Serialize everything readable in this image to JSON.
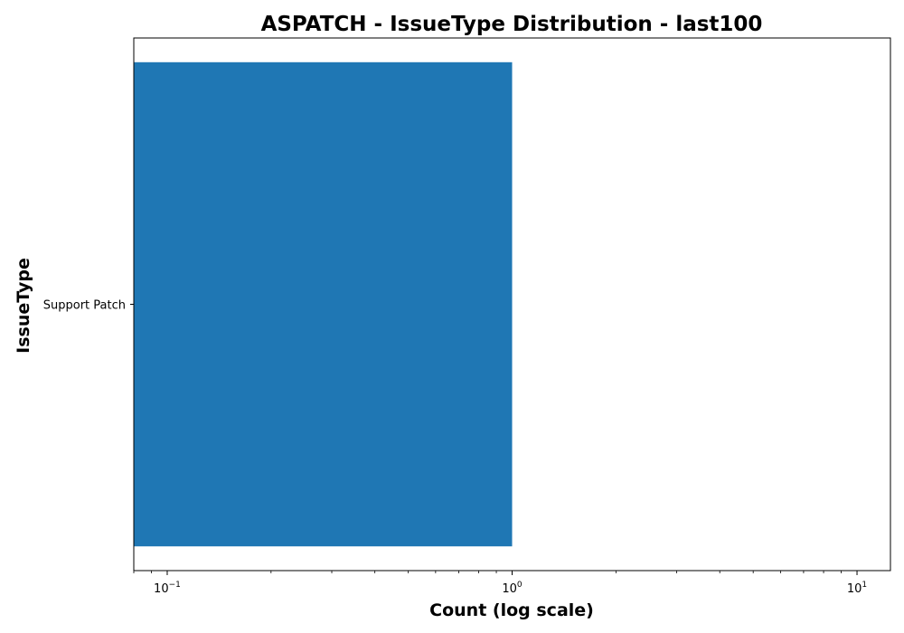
{
  "chart_data": {
    "type": "bar",
    "orientation": "horizontal",
    "title": "ASPATCH - IssueType Distribution - last100",
    "xlabel": "Count (log scale)",
    "ylabel": "IssueType",
    "x_scale": "log",
    "xlim": [
      0.08,
      12.5
    ],
    "x_ticks": [
      {
        "value": 0.1,
        "base": "10",
        "exp": "−1"
      },
      {
        "value": 1,
        "base": "10",
        "exp": "0"
      },
      {
        "value": 10,
        "base": "10",
        "exp": "1"
      }
    ],
    "categories": [
      "Support Patch"
    ],
    "values": [
      1
    ],
    "bar_color": "#1f77b4",
    "grid": false,
    "legend": "none"
  }
}
